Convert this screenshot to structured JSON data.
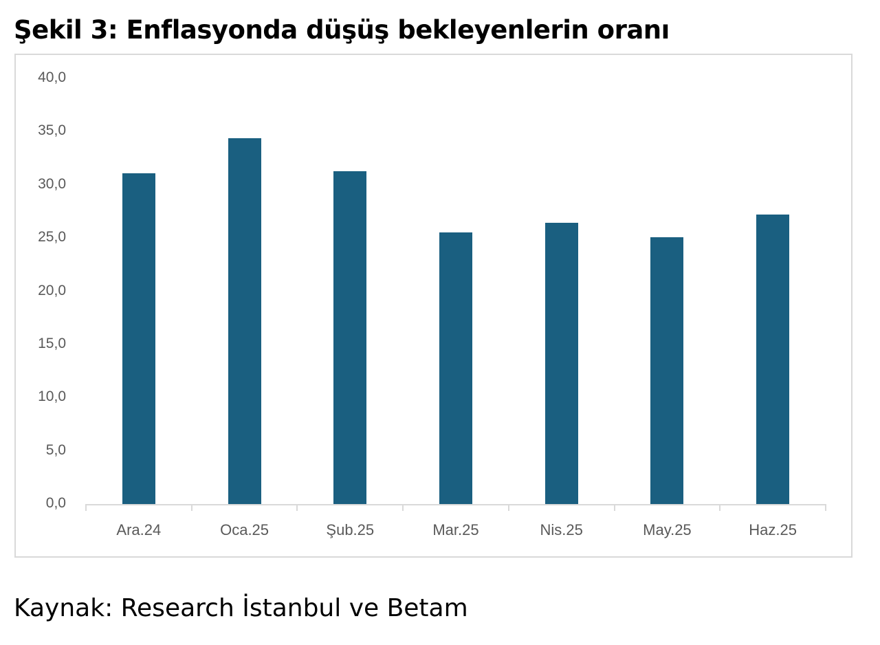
{
  "title": "Şekil 3: Enflasyonda düşüş bekleyenlerin oranı",
  "source": "Kaynak: Research İstanbul ve Betam",
  "colors": {
    "bar": "#1a5f80",
    "axis": "#d9d9d9",
    "tick_text": "#595959"
  },
  "y_ticks": [
    "0,0",
    "5,0",
    "10,0",
    "15,0",
    "20,0",
    "25,0",
    "30,0",
    "35,0",
    "40,0"
  ],
  "categories": [
    "Ara.24",
    "Oca.25",
    "Şub.25",
    "Mar.25",
    "Nis.25",
    "May.25",
    "Haz.25"
  ],
  "chart_data": {
    "type": "bar",
    "title": "Şekil 3: Enflasyonda düşüş bekleyenlerin oranı",
    "categories": [
      "Ara.24",
      "Oca.25",
      "Şub.25",
      "Mar.25",
      "Nis.25",
      "May.25",
      "Haz.25"
    ],
    "values": [
      31.1,
      34.4,
      31.3,
      25.5,
      26.4,
      25.1,
      27.2
    ],
    "xlabel": "",
    "ylabel": "",
    "ylim": [
      0,
      40
    ],
    "yticks": [
      0,
      5,
      10,
      15,
      20,
      25,
      30,
      35,
      40
    ],
    "grid": false,
    "legend": "none",
    "note": "Kaynak: Research İstanbul ve Betam"
  }
}
